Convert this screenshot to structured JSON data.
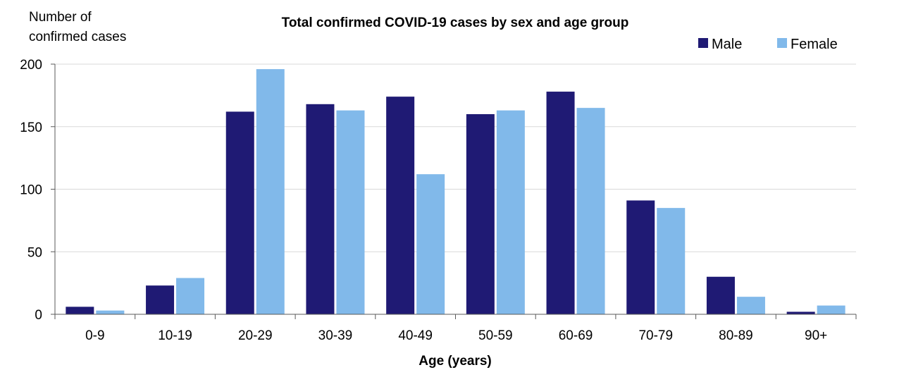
{
  "chart_data": {
    "type": "bar",
    "title": "Total confirmed COVID-19 cases by sex and age group",
    "ylabel_lines": [
      "Number of",
      "confirmed cases"
    ],
    "xlabel": "Age (years)",
    "categories": [
      "0-9",
      "10-19",
      "20-29",
      "30-39",
      "40-49",
      "50-59",
      "60-69",
      "70-79",
      "80-89",
      "90+"
    ],
    "series": [
      {
        "name": "Male",
        "color": "#1f1a74",
        "values": [
          6,
          23,
          162,
          168,
          174,
          160,
          178,
          91,
          30,
          2
        ]
      },
      {
        "name": "Female",
        "color": "#81b9ea",
        "values": [
          3,
          29,
          196,
          163,
          112,
          163,
          165,
          85,
          14,
          7
        ]
      }
    ],
    "ylim": [
      0,
      200
    ],
    "yticks": [
      0,
      50,
      100,
      150,
      200
    ],
    "grid": true,
    "legend_position": "top-right"
  }
}
